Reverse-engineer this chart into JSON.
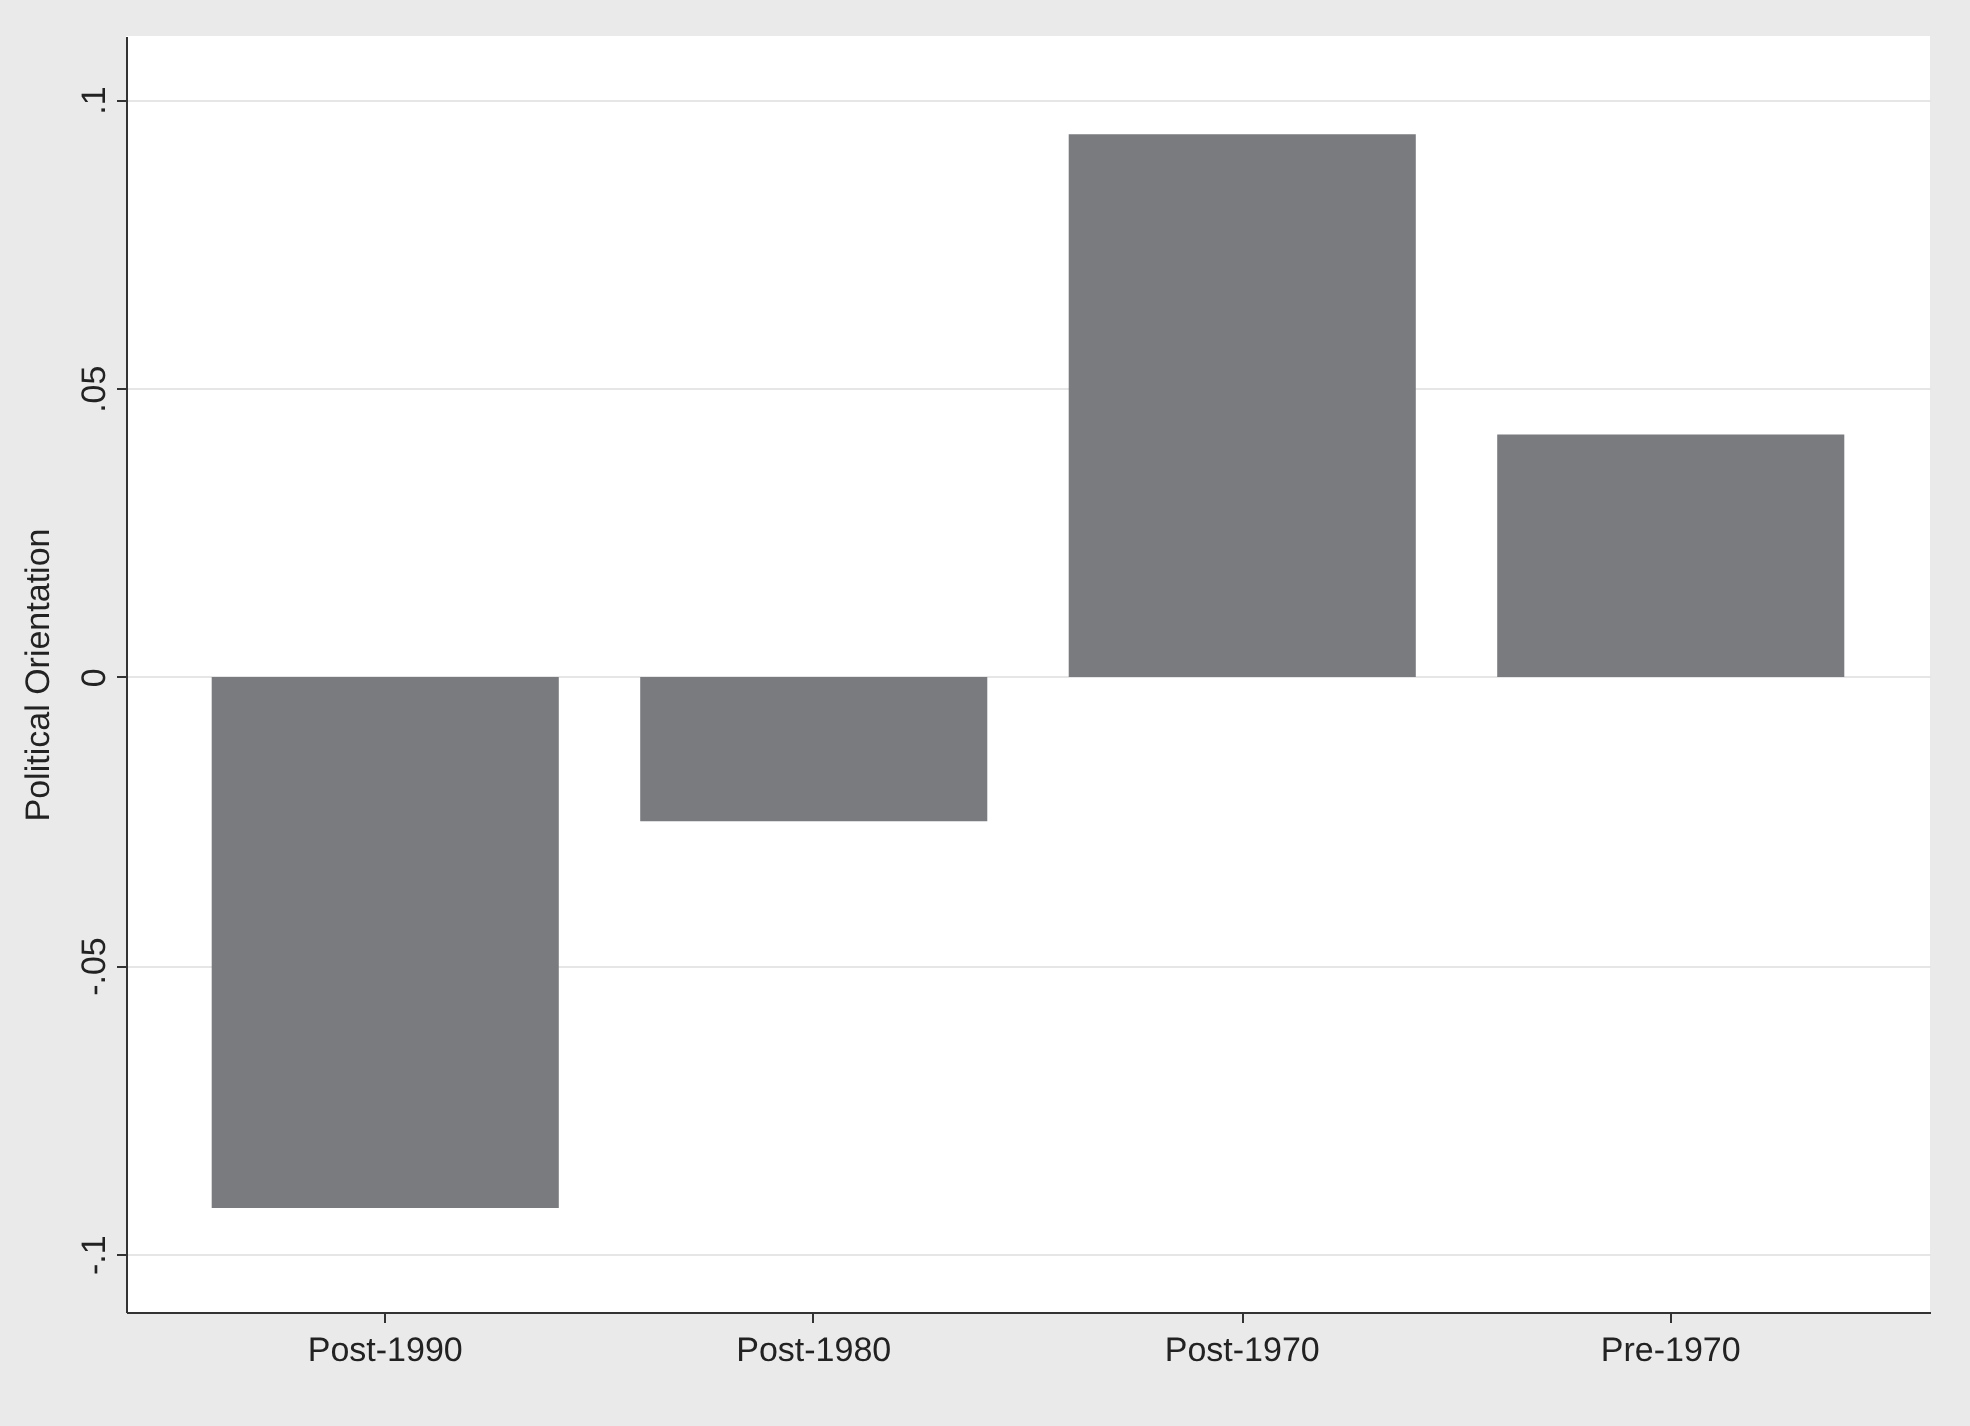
{
  "chart_data": {
    "type": "bar",
    "ylabel": "Political Orientation",
    "categories": [
      "Post-1990",
      "Post-1980",
      "Post-1970",
      "Pre-1970"
    ],
    "values": [
      -0.092,
      -0.025,
      0.094,
      0.042
    ],
    "color": "#7a7b7f",
    "ylim": [
      -0.11,
      0.111
    ],
    "yticks": [
      {
        "value": -0.1,
        "label": "-.1"
      },
      {
        "value": -0.05,
        "label": "-.05"
      },
      {
        "value": 0,
        "label": "0"
      },
      {
        "value": 0.05,
        "label": ".05"
      },
      {
        "value": 0.1,
        "label": ".1"
      }
    ],
    "grid": "y"
  }
}
